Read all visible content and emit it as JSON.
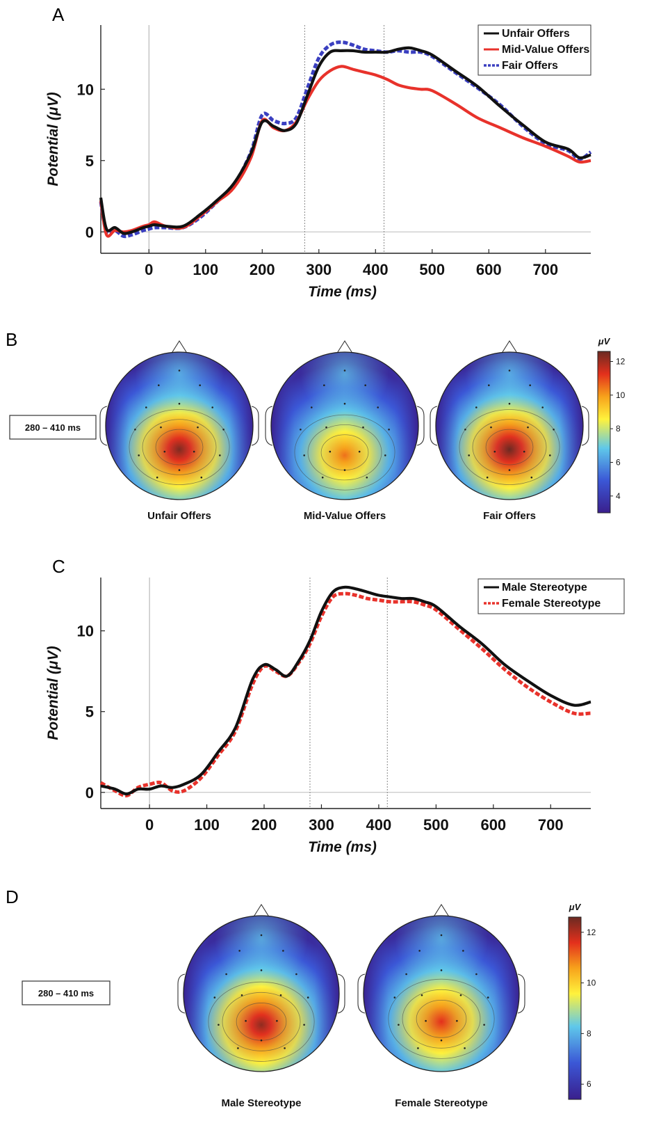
{
  "chart_data": [
    {
      "panel": "A",
      "type": "line",
      "xlabel": "Time (ms)",
      "ylabel": "Potential (μV)",
      "xlim": [
        -85,
        780
      ],
      "ylim": [
        -1.5,
        14.5
      ],
      "xticks": [
        0,
        100,
        200,
        300,
        400,
        500,
        600,
        700
      ],
      "yticks": [
        0,
        5,
        10
      ],
      "vlines": [
        0,
        275,
        415
      ],
      "legend": "top-right",
      "series": [
        {
          "name": "Unfair Offers",
          "color": "#111111",
          "style": "solid",
          "x": [
            -85,
            -75,
            -60,
            -45,
            -30,
            -10,
            0,
            10,
            30,
            60,
            90,
            120,
            150,
            180,
            200,
            220,
            240,
            260,
            280,
            300,
            320,
            340,
            360,
            380,
            400,
            420,
            440,
            460,
            480,
            500,
            540,
            580,
            620,
            660,
            700,
            740,
            760,
            780
          ],
          "y": [
            2.4,
            0.2,
            0.3,
            -0.1,
            0.0,
            0.3,
            0.4,
            0.5,
            0.4,
            0.4,
            1.2,
            2.2,
            3.4,
            5.5,
            7.7,
            7.4,
            7.1,
            7.6,
            9.6,
            11.6,
            12.6,
            12.7,
            12.7,
            12.6,
            12.6,
            12.6,
            12.8,
            12.9,
            12.7,
            12.4,
            11.3,
            10.2,
            8.8,
            7.5,
            6.3,
            5.8,
            5.2,
            5.4
          ]
        },
        {
          "name": "Mid-Value Offers",
          "color": "#e8322b",
          "style": "solid",
          "x": [
            -85,
            -75,
            -60,
            -45,
            -30,
            -10,
            0,
            10,
            30,
            60,
            90,
            120,
            150,
            180,
            200,
            220,
            240,
            260,
            280,
            300,
            320,
            340,
            360,
            380,
            400,
            420,
            440,
            460,
            480,
            500,
            540,
            580,
            620,
            660,
            700,
            740,
            760,
            780
          ],
          "y": [
            2.2,
            -0.2,
            0.1,
            0.0,
            0.1,
            0.4,
            0.5,
            0.7,
            0.4,
            0.3,
            1.1,
            2.1,
            3.1,
            5.2,
            7.8,
            7.3,
            7.1,
            7.7,
            9.3,
            10.6,
            11.3,
            11.6,
            11.4,
            11.2,
            11.0,
            10.7,
            10.3,
            10.1,
            10.0,
            9.9,
            9.0,
            8.0,
            7.3,
            6.6,
            6.0,
            5.3,
            4.9,
            5.0
          ]
        },
        {
          "name": "Fair Offers",
          "color": "#3a3fc0",
          "style": "dashed",
          "x": [
            -85,
            -75,
            -60,
            -45,
            -30,
            -10,
            0,
            10,
            30,
            60,
            90,
            120,
            150,
            180,
            200,
            220,
            240,
            260,
            280,
            300,
            320,
            340,
            360,
            380,
            400,
            420,
            440,
            460,
            480,
            500,
            540,
            580,
            620,
            660,
            700,
            740,
            760,
            780
          ],
          "y": [
            2.1,
            0.0,
            0.1,
            -0.3,
            -0.2,
            0.1,
            0.2,
            0.3,
            0.3,
            0.3,
            1.0,
            2.1,
            3.3,
            5.6,
            8.2,
            7.8,
            7.6,
            8.0,
            10.1,
            12.2,
            13.1,
            13.3,
            13.1,
            12.8,
            12.7,
            12.6,
            12.7,
            12.6,
            12.6,
            12.3,
            11.2,
            10.1,
            8.9,
            7.4,
            6.2,
            5.7,
            5.1,
            5.6
          ]
        }
      ]
    },
    {
      "panel": "B",
      "type": "heatmap",
      "time_window": "280 – 410 ms",
      "colorbar": {
        "unit": "μV",
        "min": 3,
        "max": 12.6,
        "ticks": [
          4,
          6,
          8,
          10,
          12
        ]
      },
      "maps": [
        {
          "label": "Unfair Offers",
          "peak": 12.4,
          "focus_y": 0.66
        },
        {
          "label": "Mid-Value Offers",
          "peak": 10.5,
          "focus_y": 0.7
        },
        {
          "label": "Fair Offers",
          "peak": 12.6,
          "focus_y": 0.66
        }
      ]
    },
    {
      "panel": "C",
      "type": "line",
      "xlabel": "Time (ms)",
      "ylabel": "Potential (μV)",
      "xlim": [
        -85,
        770
      ],
      "ylim": [
        -1,
        13.3
      ],
      "xticks": [
        0,
        100,
        200,
        300,
        400,
        500,
        600,
        700
      ],
      "yticks": [
        0,
        5,
        10
      ],
      "vlines": [
        0,
        280,
        415
      ],
      "legend": "top-right",
      "series": [
        {
          "name": "Male Stereotype",
          "color": "#111111",
          "style": "solid",
          "x": [
            -85,
            -60,
            -40,
            -20,
            0,
            20,
            40,
            60,
            90,
            120,
            150,
            180,
            200,
            220,
            240,
            260,
            280,
            300,
            320,
            340,
            360,
            380,
            400,
            420,
            440,
            460,
            480,
            500,
            540,
            580,
            620,
            660,
            700,
            740,
            770
          ],
          "y": [
            0.4,
            0.2,
            -0.1,
            0.2,
            0.2,
            0.4,
            0.3,
            0.5,
            1.1,
            2.5,
            4.0,
            7.0,
            7.9,
            7.6,
            7.2,
            8.1,
            9.4,
            11.2,
            12.4,
            12.7,
            12.6,
            12.4,
            12.2,
            12.1,
            12.0,
            12.0,
            11.8,
            11.5,
            10.3,
            9.2,
            7.9,
            6.9,
            6.0,
            5.4,
            5.6
          ]
        },
        {
          "name": "Female Stereotype",
          "color": "#e8322b",
          "style": "dashed",
          "x": [
            -85,
            -60,
            -40,
            -20,
            0,
            20,
            40,
            60,
            90,
            120,
            150,
            180,
            200,
            220,
            240,
            260,
            280,
            300,
            320,
            340,
            360,
            380,
            400,
            420,
            440,
            460,
            480,
            500,
            540,
            580,
            620,
            660,
            700,
            740,
            770
          ],
          "y": [
            0.6,
            0.1,
            -0.2,
            0.3,
            0.5,
            0.6,
            0.1,
            0.1,
            0.9,
            2.3,
            3.8,
            6.7,
            7.8,
            7.5,
            7.2,
            8.0,
            9.2,
            10.9,
            12.1,
            12.3,
            12.2,
            12.0,
            11.9,
            11.8,
            11.8,
            11.8,
            11.6,
            11.3,
            10.1,
            8.9,
            7.6,
            6.5,
            5.6,
            4.9,
            4.9
          ]
        }
      ]
    },
    {
      "panel": "D",
      "type": "heatmap",
      "time_window": "280 – 410 ms",
      "colorbar": {
        "unit": "μV",
        "min": 5.4,
        "max": 12.6,
        "ticks": [
          6,
          8,
          10,
          12
        ]
      },
      "maps": [
        {
          "label": "Male Stereotype",
          "peak": 12.3,
          "focus_y": 0.7
        },
        {
          "label": "Female Stereotype",
          "peak": 11.6,
          "focus_y": 0.68
        }
      ]
    }
  ]
}
